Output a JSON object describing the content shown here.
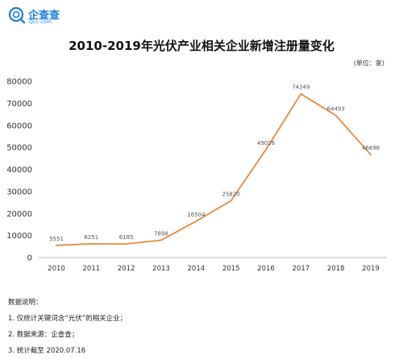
{
  "logo": {
    "name": "企查查",
    "subtitle": "Qcc.com",
    "icon": "magnifier-logo-icon",
    "color": "#1a7de0"
  },
  "chart_data": {
    "type": "line",
    "title": "2010-2019年光伏产业相关企业新增注册量变化",
    "unit_label": "(单位：家)",
    "xlabel": "",
    "ylabel": "",
    "categories": [
      "2010",
      "2011",
      "2012",
      "2013",
      "2014",
      "2015",
      "2016",
      "2017",
      "2018",
      "2019"
    ],
    "series": [
      {
        "values": [
          5551,
          6251,
          6185,
          7898,
          16504,
          25820,
          49026,
          74249,
          64493,
          46698
        ],
        "data_labels": [
          "5551",
          "6251",
          "6185",
          "7898",
          "16504",
          "25820",
          "49026",
          "74249",
          "64493",
          "46698"
        ],
        "color": "#e58a3a"
      }
    ],
    "ylim": [
      0,
      80000
    ],
    "yticks": [
      0,
      10000,
      20000,
      30000,
      40000,
      50000,
      60000,
      70000,
      80000
    ],
    "ytick_labels": [
      "0",
      "10000",
      "20000",
      "30000",
      "40000",
      "50000",
      "60000",
      "70000",
      "80000"
    ],
    "grid": false,
    "legend": "none"
  },
  "notes": {
    "heading": "数据说明：",
    "items": [
      "1. 仅统计关键词含“光伏”的相关企业；",
      "2. 数据来源：企查查；",
      "3. 统计截至 2020.07.16"
    ]
  }
}
